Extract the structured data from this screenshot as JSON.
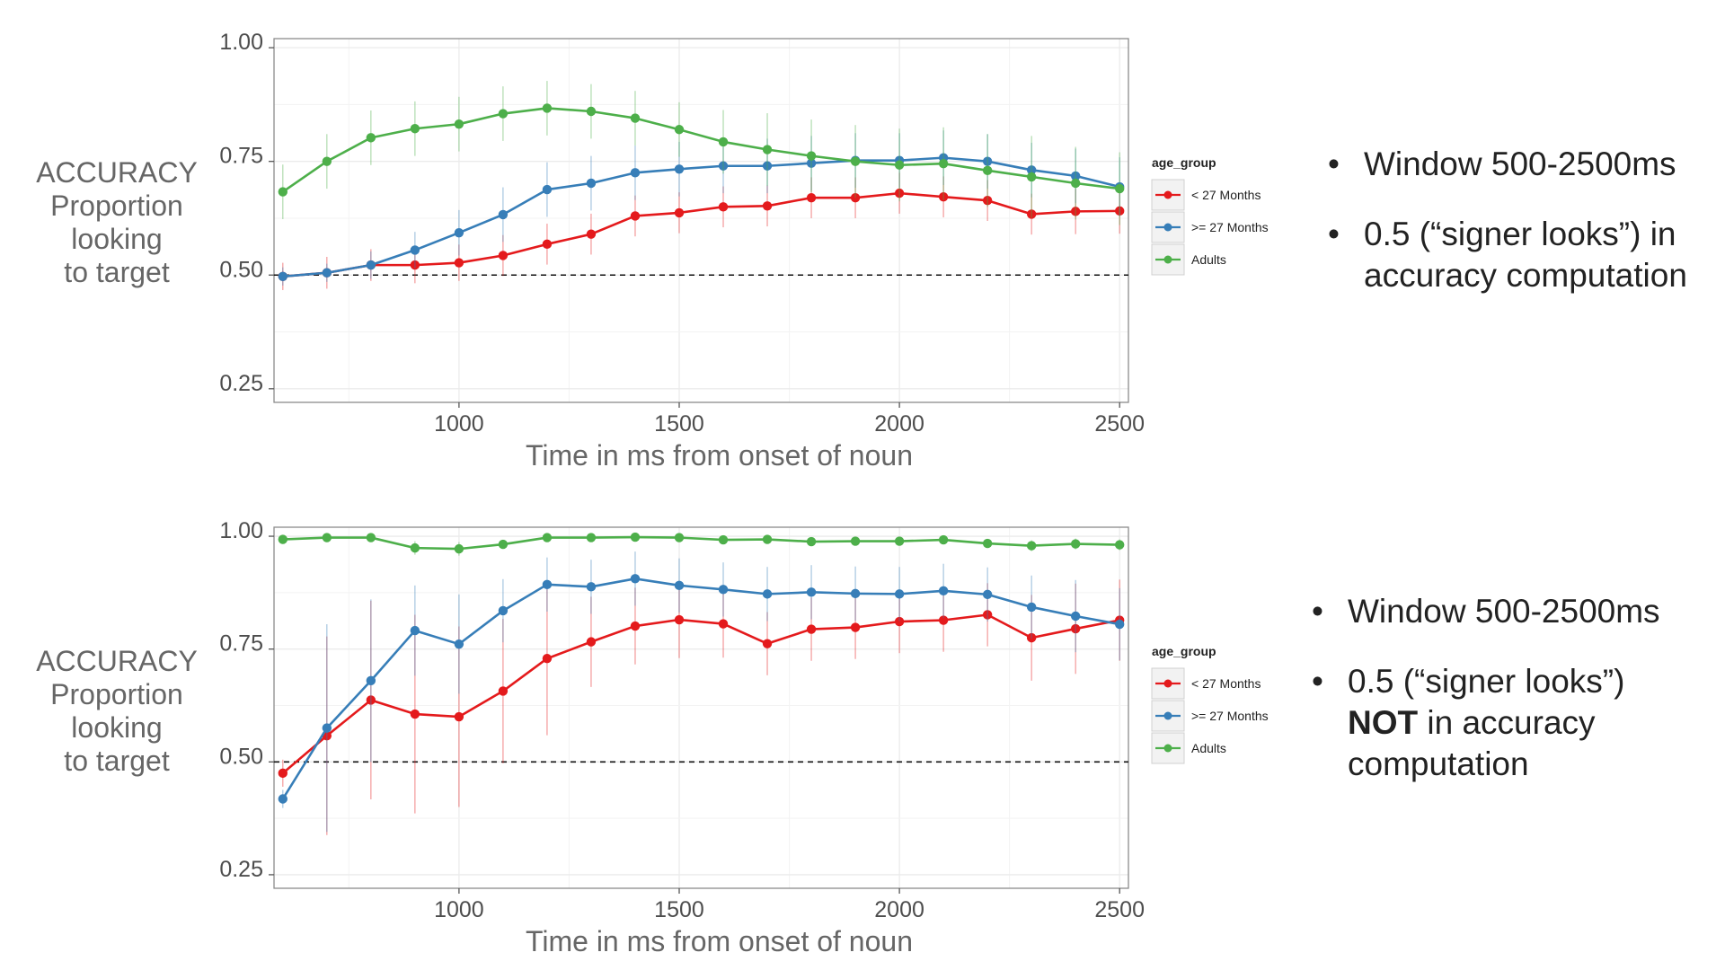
{
  "colors": {
    "under27": "#e41a1c",
    "over27": "#377eb8",
    "adults": "#4daf4a",
    "axis_text": "#4d4d4d",
    "title_text": "#666666"
  },
  "chart_data": [
    {
      "type": "line",
      "ylabel_lines": [
        "ACCURACY",
        "Proportion",
        "looking",
        "to target"
      ],
      "xlabel": "Time in ms from onset of noun",
      "xlim": [
        580,
        2520
      ],
      "ylim": [
        0.22,
        1.02
      ],
      "xticks": [
        "1000",
        "1500",
        "2000",
        "2500"
      ],
      "yticks": [
        "0.25",
        "0.50",
        "0.75",
        "1.00"
      ],
      "reference_line_y": 0.5,
      "grid": true,
      "legend_title": "age_group",
      "legend_placement": "right",
      "x": [
        600,
        700,
        800,
        900,
        1000,
        1100,
        1200,
        1300,
        1400,
        1500,
        1600,
        1700,
        1800,
        1900,
        2000,
        2100,
        2200,
        2300,
        2400,
        2500
      ],
      "series": [
        {
          "name": "< 27 Months",
          "color_key": "under27",
          "values": [
            0.497,
            0.505,
            0.522,
            0.522,
            0.527,
            0.543,
            0.568,
            0.59,
            0.63,
            0.637,
            0.65,
            0.652,
            0.67,
            0.67,
            0.68,
            0.672,
            0.664,
            0.634,
            0.64,
            0.641
          ],
          "err": [
            0.03,
            0.035,
            0.035,
            0.04,
            0.04,
            0.045,
            0.045,
            0.045,
            0.045,
            0.045,
            0.045,
            0.045,
            0.045,
            0.045,
            0.045,
            0.045,
            0.045,
            0.045,
            0.05,
            0.05
          ]
        },
        {
          "name": ">= 27 Months",
          "color_key": "over27",
          "values": [
            0.497,
            0.505,
            0.522,
            0.555,
            0.593,
            0.633,
            0.688,
            0.702,
            0.725,
            0.733,
            0.74,
            0.74,
            0.746,
            0.752,
            0.752,
            0.758,
            0.75,
            0.731,
            0.718,
            0.694
          ],
          "err": [
            0.02,
            0.02,
            0.03,
            0.04,
            0.05,
            0.06,
            0.06,
            0.06,
            0.06,
            0.06,
            0.06,
            0.06,
            0.06,
            0.06,
            0.06,
            0.06,
            0.06,
            0.06,
            0.06,
            0.065
          ]
        },
        {
          "name": "Adults",
          "color_key": "adults",
          "values": [
            0.683,
            0.75,
            0.802,
            0.822,
            0.832,
            0.855,
            0.867,
            0.86,
            0.845,
            0.82,
            0.793,
            0.776,
            0.762,
            0.75,
            0.742,
            0.745,
            0.73,
            0.716,
            0.702,
            0.69
          ],
          "err": [
            0.06,
            0.06,
            0.06,
            0.06,
            0.06,
            0.06,
            0.06,
            0.06,
            0.06,
            0.06,
            0.07,
            0.08,
            0.08,
            0.08,
            0.08,
            0.08,
            0.08,
            0.09,
            0.08,
            0.08
          ]
        }
      ]
    },
    {
      "type": "line",
      "ylabel_lines": [
        "ACCURACY",
        "Proportion",
        "looking",
        "to target"
      ],
      "xlabel": "Time in ms from onset of noun",
      "xlim": [
        580,
        2520
      ],
      "ylim": [
        0.22,
        1.02
      ],
      "xticks": [
        "1000",
        "1500",
        "2000",
        "2500"
      ],
      "yticks": [
        "0.25",
        "0.50",
        "0.75",
        "1.00"
      ],
      "reference_line_y": 0.5,
      "grid": true,
      "legend_title": "age_group",
      "legend_placement": "right",
      "x": [
        600,
        700,
        800,
        900,
        1000,
        1100,
        1200,
        1300,
        1400,
        1500,
        1600,
        1700,
        1800,
        1900,
        2000,
        2100,
        2200,
        2300,
        2400,
        2500
      ],
      "series": [
        {
          "name": "< 27 Months",
          "color_key": "under27",
          "values": [
            0.475,
            0.558,
            0.637,
            0.606,
            0.6,
            0.657,
            0.729,
            0.766,
            0.801,
            0.815,
            0.806,
            0.762,
            0.794,
            0.798,
            0.811,
            0.814,
            0.826,
            0.775,
            0.795,
            0.814
          ],
          "err": [
            0.03,
            0.22,
            0.22,
            0.22,
            0.2,
            0.16,
            0.17,
            0.1,
            0.085,
            0.085,
            0.075,
            0.07,
            0.07,
            0.07,
            0.07,
            0.07,
            0.07,
            0.095,
            0.1,
            0.09
          ]
        },
        {
          "name": ">= 27 Months",
          "color_key": "over27",
          "values": [
            0.418,
            0.575,
            0.68,
            0.791,
            0.761,
            0.835,
            0.893,
            0.888,
            0.906,
            0.891,
            0.882,
            0.872,
            0.876,
            0.873,
            0.872,
            0.879,
            0.871,
            0.843,
            0.823,
            0.805
          ],
          "err": [
            0.02,
            0.23,
            0.18,
            0.1,
            0.11,
            0.07,
            0.06,
            0.06,
            0.06,
            0.06,
            0.06,
            0.06,
            0.06,
            0.06,
            0.06,
            0.06,
            0.06,
            0.07,
            0.08,
            0.08
          ]
        },
        {
          "name": "Adults",
          "color_key": "adults",
          "values": [
            0.993,
            0.997,
            0.997,
            0.974,
            0.972,
            0.982,
            0.997,
            0.997,
            0.998,
            0.997,
            0.992,
            0.993,
            0.988,
            0.989,
            0.989,
            0.992,
            0.984,
            0.979,
            0.983,
            0.981
          ],
          "err": [
            0.01,
            0.01,
            0.01,
            0.015,
            0.015,
            0.01,
            0.008,
            0.008,
            0.008,
            0.008,
            0.008,
            0.008,
            0.008,
            0.008,
            0.008,
            0.008,
            0.01,
            0.012,
            0.012,
            0.012
          ]
        }
      ]
    }
  ],
  "notes": {
    "top": {
      "bullet1": "Window 500-2500ms",
      "bullet2": "0.5 (“signer looks”) in accuracy computation"
    },
    "bottom": {
      "bullet1": "Window 500-2500ms",
      "bullet2_pre": "0.5 (“signer looks”)",
      "bullet2_strong": "NOT",
      "bullet2_post": "in accuracy computation"
    }
  }
}
